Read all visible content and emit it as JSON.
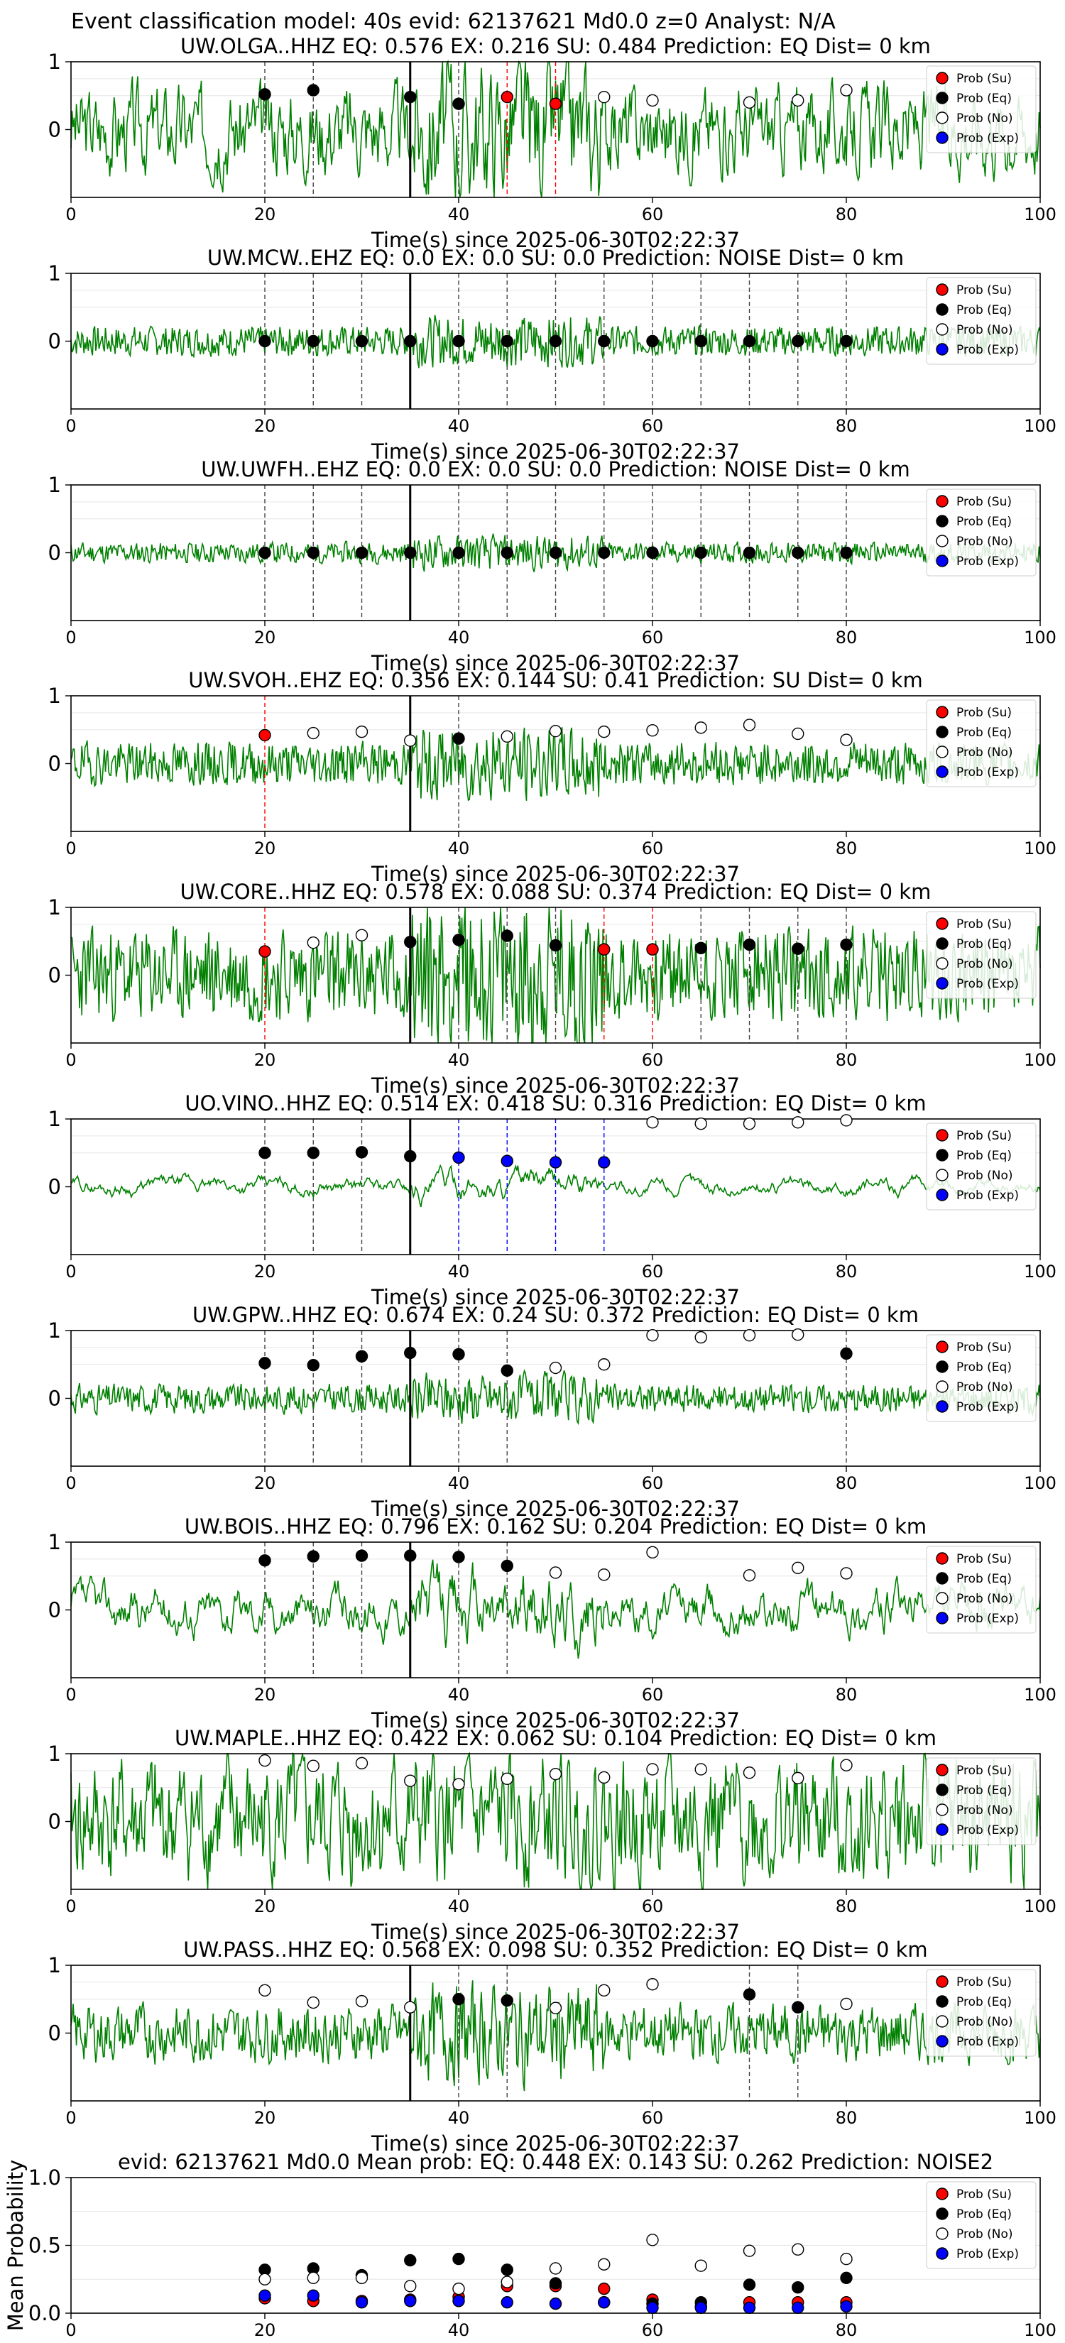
{
  "suptitle": "Event classification model: 40s evid: 62137621 Md0.0 z=0 Analyst: N/A",
  "legend": [
    {
      "label": "Prob (Su)",
      "fill": "#ff0000"
    },
    {
      "label": "Prob (Eq)",
      "fill": "#000000"
    },
    {
      "label": "Prob (No)",
      "fill": "#ffffff"
    },
    {
      "label": "Prob (Exp)",
      "fill": "#0000ff"
    }
  ],
  "colors": {
    "waveform": "#008000",
    "su": "#ff0000",
    "eq": "#000000",
    "no": "#ffffff",
    "exp": "#0000ff",
    "pick": "#000000"
  },
  "chart_data": [
    {
      "type": "scatter",
      "title": "UW.OLGA..HHZ   EQ: 0.576  EX: 0.216  SU: 0.484   Prediction: EQ    Dist= 0 km",
      "xlabel": "Time(s) since 2025-06-30T02:22:37",
      "ylabel": "",
      "xlim": [
        0,
        100
      ],
      "ylim": [
        -1,
        1
      ],
      "xticks": [
        "0",
        "20",
        "40",
        "60",
        "80",
        "100"
      ],
      "yticks": [
        "0",
        "1"
      ],
      "pick_time": 35,
      "noise_amp": 0.55,
      "noise_seed": 3,
      "smooth": 0.55,
      "series": [
        {
          "name": "Prob (Su)",
          "x": [
            45,
            50
          ],
          "y": [
            0.48,
            0.38
          ]
        },
        {
          "name": "Prob (Eq)",
          "x": [
            20,
            25,
            35,
            40
          ],
          "y": [
            0.52,
            0.58,
            0.48,
            0.38
          ]
        },
        {
          "name": "Prob (No)",
          "x": [
            55,
            60,
            70,
            75,
            80
          ],
          "y": [
            0.48,
            0.43,
            0.4,
            0.43,
            0.58
          ]
        },
        {
          "name": "Prob (Exp)",
          "x": [],
          "y": []
        }
      ]
    },
    {
      "type": "scatter",
      "title": "UW.MCW..EHZ   EQ: 0.0  EX: 0.0  SU: 0.0    Prediction: NOISE    Dist= 0 km",
      "xlabel": "Time(s) since 2025-06-30T02:22:37",
      "ylabel": "",
      "xlim": [
        0,
        100
      ],
      "ylim": [
        -1,
        1
      ],
      "xticks": [
        "0",
        "20",
        "40",
        "60",
        "80",
        "100"
      ],
      "yticks": [
        "0",
        "1"
      ],
      "pick_time": 35,
      "noise_amp": 0.12,
      "noise_seed": 7,
      "smooth": 0.1,
      "series": [
        {
          "name": "Prob (Su)",
          "x": [],
          "y": []
        },
        {
          "name": "Prob (Eq)",
          "x": [
            20,
            25,
            30,
            35,
            40,
            45,
            50,
            55,
            60,
            65,
            70,
            75,
            80
          ],
          "y": [
            0,
            0,
            0,
            0,
            0,
            0,
            0,
            0,
            0,
            0,
            0,
            0,
            0
          ]
        },
        {
          "name": "Prob (No)",
          "x": [],
          "y": []
        },
        {
          "name": "Prob (Exp)",
          "x": [],
          "y": []
        }
      ]
    },
    {
      "type": "scatter",
      "title": "UW.UWFH..EHZ   EQ: 0.0  EX: 0.0  SU: 0.0    Prediction: NOISE    Dist= 0 km",
      "xlabel": "Time(s) since 2025-06-30T02:22:37",
      "ylabel": "",
      "xlim": [
        0,
        100
      ],
      "ylim": [
        -1,
        1
      ],
      "xticks": [
        "0",
        "20",
        "40",
        "60",
        "80",
        "100"
      ],
      "yticks": [
        "0",
        "1"
      ],
      "pick_time": 35,
      "noise_amp": 0.09,
      "noise_seed": 11,
      "smooth": 0.2,
      "series": [
        {
          "name": "Prob (Su)",
          "x": [],
          "y": []
        },
        {
          "name": "Prob (Eq)",
          "x": [
            20,
            25,
            30,
            35,
            40,
            45,
            50,
            55,
            60,
            65,
            70,
            75,
            80
          ],
          "y": [
            0,
            0,
            0,
            0,
            0,
            0,
            0,
            0,
            0,
            0,
            0,
            0,
            0
          ]
        },
        {
          "name": "Prob (No)",
          "x": [],
          "y": []
        },
        {
          "name": "Prob (Exp)",
          "x": [],
          "y": []
        }
      ]
    },
    {
      "type": "scatter",
      "title": "UW.SVOH..EHZ   EQ: 0.356  EX: 0.144  SU: 0.41    Prediction: SU    Dist= 0 km",
      "xlabel": "Time(s) since 2025-06-30T02:22:37",
      "ylabel": "",
      "xlim": [
        0,
        100
      ],
      "ylim": [
        -1,
        1
      ],
      "xticks": [
        "0",
        "20",
        "40",
        "60",
        "80",
        "100"
      ],
      "yticks": [
        "0",
        "1"
      ],
      "pick_time": 35,
      "noise_amp": 0.18,
      "noise_seed": 19,
      "smooth": 0.15,
      "series": [
        {
          "name": "Prob (Su)",
          "x": [
            20
          ],
          "y": [
            0.42
          ]
        },
        {
          "name": "Prob (Eq)",
          "x": [
            40
          ],
          "y": [
            0.37
          ]
        },
        {
          "name": "Prob (No)",
          "x": [
            25,
            30,
            35,
            45,
            50,
            55,
            60,
            65,
            70,
            75,
            80
          ],
          "y": [
            0.45,
            0.47,
            0.34,
            0.4,
            0.48,
            0.47,
            0.49,
            0.53,
            0.57,
            0.44,
            0.35
          ]
        },
        {
          "name": "Prob (Exp)",
          "x": [],
          "y": []
        }
      ]
    },
    {
      "type": "scatter",
      "title": "UW.CORE..HHZ   EQ: 0.578  EX: 0.088  SU: 0.374   Prediction: EQ    Dist= 0 km",
      "xlabel": "Time(s) since 2025-06-30T02:22:37",
      "ylabel": "",
      "xlim": [
        0,
        100
      ],
      "ylim": [
        -1,
        1
      ],
      "xticks": [
        "0",
        "20",
        "40",
        "60",
        "80",
        "100"
      ],
      "yticks": [
        "0",
        "1"
      ],
      "pick_time": 35,
      "noise_amp": 0.4,
      "noise_seed": 23,
      "smooth": 0.2,
      "series": [
        {
          "name": "Prob (Su)",
          "x": [
            20,
            55,
            60
          ],
          "y": [
            0.35,
            0.38,
            0.38
          ]
        },
        {
          "name": "Prob (Eq)",
          "x": [
            35,
            40,
            45,
            50,
            65,
            70,
            75,
            80
          ],
          "y": [
            0.49,
            0.52,
            0.58,
            0.44,
            0.4,
            0.45,
            0.39,
            0.45
          ]
        },
        {
          "name": "Prob (No)",
          "x": [
            25,
            30
          ],
          "y": [
            0.48,
            0.59
          ]
        },
        {
          "name": "Prob (Exp)",
          "x": [],
          "y": []
        }
      ]
    },
    {
      "type": "scatter",
      "title": "UO.VINO..HHZ   EQ: 0.514  EX: 0.418  SU: 0.316   Prediction: EQ    Dist= 0 km",
      "xlabel": "Time(s) since 2025-06-30T02:22:37",
      "ylabel": "",
      "xlim": [
        0,
        100
      ],
      "ylim": [
        -1,
        1
      ],
      "xticks": [
        "0",
        "20",
        "40",
        "60",
        "80",
        "100"
      ],
      "yticks": [
        "0",
        "1"
      ],
      "pick_time": 35,
      "noise_amp": 0.3,
      "noise_seed": 29,
      "smooth": 0.9,
      "series": [
        {
          "name": "Prob (Su)",
          "x": [],
          "y": []
        },
        {
          "name": "Prob (Eq)",
          "x": [
            20,
            25,
            30,
            35
          ],
          "y": [
            0.5,
            0.5,
            0.51,
            0.45
          ]
        },
        {
          "name": "Prob (No)",
          "x": [
            60,
            65,
            70,
            75,
            80
          ],
          "y": [
            0.95,
            0.93,
            0.93,
            0.95,
            0.98
          ]
        },
        {
          "name": "Prob (Exp)",
          "x": [
            40,
            45,
            50,
            55
          ],
          "y": [
            0.43,
            0.38,
            0.36,
            0.36
          ]
        }
      ]
    },
    {
      "type": "scatter",
      "title": "UW.GPW..HHZ   EQ: 0.674  EX: 0.24  SU: 0.372   Prediction: EQ    Dist= 0 km",
      "xlabel": "Time(s) since 2025-06-30T02:22:37",
      "ylabel": "",
      "xlim": [
        0,
        100
      ],
      "ylim": [
        -1,
        1
      ],
      "xticks": [
        "0",
        "20",
        "40",
        "60",
        "80",
        "100"
      ],
      "yticks": [
        "0",
        "1"
      ],
      "pick_time": 35,
      "noise_amp": 0.13,
      "noise_seed": 31,
      "smooth": 0.25,
      "series": [
        {
          "name": "Prob (Su)",
          "x": [],
          "y": []
        },
        {
          "name": "Prob (Eq)",
          "x": [
            20,
            25,
            30,
            35,
            40,
            45,
            80
          ],
          "y": [
            0.52,
            0.49,
            0.62,
            0.67,
            0.65,
            0.41,
            0.66
          ]
        },
        {
          "name": "Prob (No)",
          "x": [
            50,
            55,
            60,
            65,
            70,
            75
          ],
          "y": [
            0.45,
            0.5,
            0.93,
            0.9,
            0.93,
            0.94
          ]
        },
        {
          "name": "Prob (Exp)",
          "x": [],
          "y": []
        }
      ]
    },
    {
      "type": "scatter",
      "title": "UW.BOIS..HHZ   EQ: 0.796  EX: 0.162  SU: 0.204   Prediction: EQ    Dist= 0 km",
      "xlabel": "Time(s) since 2025-06-30T02:22:37",
      "ylabel": "",
      "xlim": [
        0,
        100
      ],
      "ylim": [
        -1,
        1
      ],
      "xticks": [
        "0",
        "20",
        "40",
        "60",
        "80",
        "100"
      ],
      "yticks": [
        "0",
        "1"
      ],
      "pick_time": 35,
      "noise_amp": 0.5,
      "noise_seed": 37,
      "smooth": 0.8,
      "series": [
        {
          "name": "Prob (Su)",
          "x": [],
          "y": []
        },
        {
          "name": "Prob (Eq)",
          "x": [
            20,
            25,
            30,
            35,
            40,
            45
          ],
          "y": [
            0.73,
            0.79,
            0.8,
            0.8,
            0.78,
            0.65
          ]
        },
        {
          "name": "Prob (No)",
          "x": [
            50,
            55,
            60,
            70,
            75,
            80
          ],
          "y": [
            0.55,
            0.52,
            0.85,
            0.51,
            0.62,
            0.54
          ]
        },
        {
          "name": "Prob (Exp)",
          "x": [],
          "y": []
        }
      ]
    },
    {
      "type": "scatter",
      "title": "UW.MAPLE..HHZ   EQ: 0.422  EX: 0.062  SU: 0.104   Prediction: EQ    Dist= 0 km",
      "xlabel": "Time(s) since 2025-06-30T02:22:37",
      "ylabel": "",
      "xlim": [
        0,
        100
      ],
      "ylim": [
        -1,
        1
      ],
      "xticks": [
        "0",
        "20",
        "40",
        "60",
        "80",
        "100"
      ],
      "yticks": [
        "0",
        "1"
      ],
      "pick_time": null,
      "noise_amp": 0.75,
      "noise_seed": 41,
      "smooth": 0.5,
      "series": [
        {
          "name": "Prob (Su)",
          "x": [],
          "y": []
        },
        {
          "name": "Prob (Eq)",
          "x": [],
          "y": []
        },
        {
          "name": "Prob (No)",
          "x": [
            20,
            25,
            30,
            35,
            40,
            45,
            50,
            55,
            60,
            65,
            70,
            75,
            80
          ],
          "y": [
            0.9,
            0.82,
            0.86,
            0.6,
            0.55,
            0.63,
            0.7,
            0.65,
            0.77,
            0.77,
            0.72,
            0.64,
            0.83
          ]
        },
        {
          "name": "Prob (Exp)",
          "x": [],
          "y": []
        }
      ]
    },
    {
      "type": "scatter",
      "title": "UW.PASS..HHZ   EQ: 0.568  EX: 0.098  SU: 0.352   Prediction: EQ    Dist= 0 km",
      "xlabel": "Time(s) since 2025-06-30T02:22:37",
      "ylabel": "",
      "xlim": [
        0,
        100
      ],
      "ylim": [
        -1,
        1
      ],
      "xticks": [
        "0",
        "20",
        "40",
        "60",
        "80",
        "100"
      ],
      "yticks": [
        "0",
        "1"
      ],
      "pick_time": 35,
      "noise_amp": 0.28,
      "noise_seed": 43,
      "smooth": 0.35,
      "series": [
        {
          "name": "Prob (Su)",
          "x": [],
          "y": []
        },
        {
          "name": "Prob (Eq)",
          "x": [
            40,
            45,
            70,
            75
          ],
          "y": [
            0.5,
            0.48,
            0.57,
            0.38
          ]
        },
        {
          "name": "Prob (No)",
          "x": [
            20,
            25,
            30,
            35,
            50,
            55,
            60,
            80
          ],
          "y": [
            0.63,
            0.45,
            0.47,
            0.38,
            0.37,
            0.63,
            0.72,
            0.43
          ]
        },
        {
          "name": "Prob (Exp)",
          "x": [],
          "y": []
        }
      ]
    },
    {
      "type": "scatter",
      "title": "evid: 62137621  Md0.0   Mean prob:   EQ: 0.448  EX: 0.143  SU: 0.262   Prediction: NOISE2",
      "xlabel": "",
      "ylabel": "Mean Probability",
      "xlim": [
        0,
        100
      ],
      "ylim": [
        0,
        1
      ],
      "xticks": [
        "0",
        "20",
        "40",
        "60",
        "80",
        "100"
      ],
      "yticks": [
        "0.0",
        "0.5",
        "1.0"
      ],
      "series": [
        {
          "name": "Prob (Su)",
          "x": [
            20,
            25,
            30,
            35,
            40,
            45,
            50,
            55,
            60,
            65,
            70,
            75,
            80
          ],
          "y": [
            0.11,
            0.09,
            0.09,
            0.1,
            0.12,
            0.2,
            0.2,
            0.18,
            0.1,
            0.05,
            0.08,
            0.08,
            0.08
          ]
        },
        {
          "name": "Prob (Eq)",
          "x": [
            20,
            25,
            30,
            35,
            40,
            45,
            50,
            55,
            60,
            65,
            70,
            75,
            80
          ],
          "y": [
            0.32,
            0.33,
            0.28,
            0.39,
            0.4,
            0.32,
            0.22,
            0.08,
            0.07,
            0.08,
            0.21,
            0.19,
            0.26
          ]
        },
        {
          "name": "Prob (No)",
          "x": [
            20,
            25,
            30,
            35,
            40,
            45,
            50,
            55,
            60,
            65,
            70,
            75,
            80
          ],
          "y": [
            0.25,
            0.26,
            0.26,
            0.2,
            0.18,
            0.23,
            0.33,
            0.36,
            0.54,
            0.35,
            0.46,
            0.47,
            0.4
          ]
        },
        {
          "name": "Prob (Exp)",
          "x": [
            20,
            25,
            30,
            35,
            40,
            45,
            50,
            55,
            60,
            65,
            70,
            75,
            80
          ],
          "y": [
            0.13,
            0.13,
            0.08,
            0.09,
            0.09,
            0.08,
            0.07,
            0.08,
            0.04,
            0.04,
            0.04,
            0.04,
            0.05
          ]
        }
      ]
    }
  ]
}
